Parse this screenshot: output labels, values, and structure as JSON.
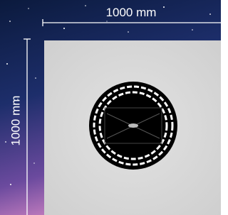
{
  "dimensions": {
    "width_label": "1000 mm",
    "height_label": "1000 mm"
  }
}
